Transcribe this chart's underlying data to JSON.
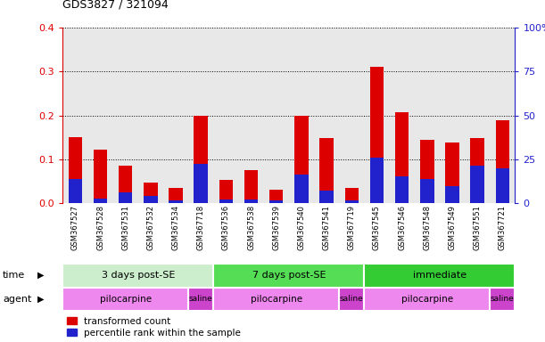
{
  "title": "GDS3827 / 321094",
  "samples": [
    "GSM367527",
    "GSM367528",
    "GSM367531",
    "GSM367532",
    "GSM367534",
    "GSM367718",
    "GSM367536",
    "GSM367538",
    "GSM367539",
    "GSM367540",
    "GSM367541",
    "GSM367719",
    "GSM367545",
    "GSM367546",
    "GSM367548",
    "GSM367549",
    "GSM367551",
    "GSM367721"
  ],
  "red_values": [
    0.15,
    0.122,
    0.085,
    0.048,
    0.035,
    0.2,
    0.053,
    0.075,
    0.032,
    0.2,
    0.148,
    0.035,
    0.31,
    0.208,
    0.145,
    0.138,
    0.148,
    0.19
  ],
  "blue_values": [
    0.055,
    0.012,
    0.025,
    0.018,
    0.008,
    0.09,
    0.01,
    0.01,
    0.008,
    0.065,
    0.03,
    0.008,
    0.105,
    0.062,
    0.055,
    0.04,
    0.085,
    0.08
  ],
  "red_color": "#dd0000",
  "blue_color": "#2222cc",
  "ylim_left": [
    0,
    0.4
  ],
  "ylim_right": [
    0,
    100
  ],
  "yticks_left": [
    0,
    0.1,
    0.2,
    0.3,
    0.4
  ],
  "yticks_right": [
    0,
    25,
    50,
    75,
    100
  ],
  "time_groups": [
    {
      "label": "3 days post-SE",
      "start": 0,
      "end": 6,
      "color": "#cceecc"
    },
    {
      "label": "7 days post-SE",
      "start": 6,
      "end": 12,
      "color": "#55dd55"
    },
    {
      "label": "immediate",
      "start": 12,
      "end": 18,
      "color": "#33cc33"
    }
  ],
  "agent_groups": [
    {
      "label": "pilocarpine",
      "start": 0,
      "end": 5,
      "color": "#ee88ee"
    },
    {
      "label": "saline",
      "start": 5,
      "end": 6,
      "color": "#cc44cc"
    },
    {
      "label": "pilocarpine",
      "start": 6,
      "end": 11,
      "color": "#ee88ee"
    },
    {
      "label": "saline",
      "start": 11,
      "end": 12,
      "color": "#cc44cc"
    },
    {
      "label": "pilocarpine",
      "start": 12,
      "end": 17,
      "color": "#ee88ee"
    },
    {
      "label": "saline",
      "start": 17,
      "end": 18,
      "color": "#cc44cc"
    }
  ],
  "legend_red": "transformed count",
  "legend_blue": "percentile rank within the sample",
  "bar_width": 0.55,
  "bg_color": "#e8e8e8"
}
